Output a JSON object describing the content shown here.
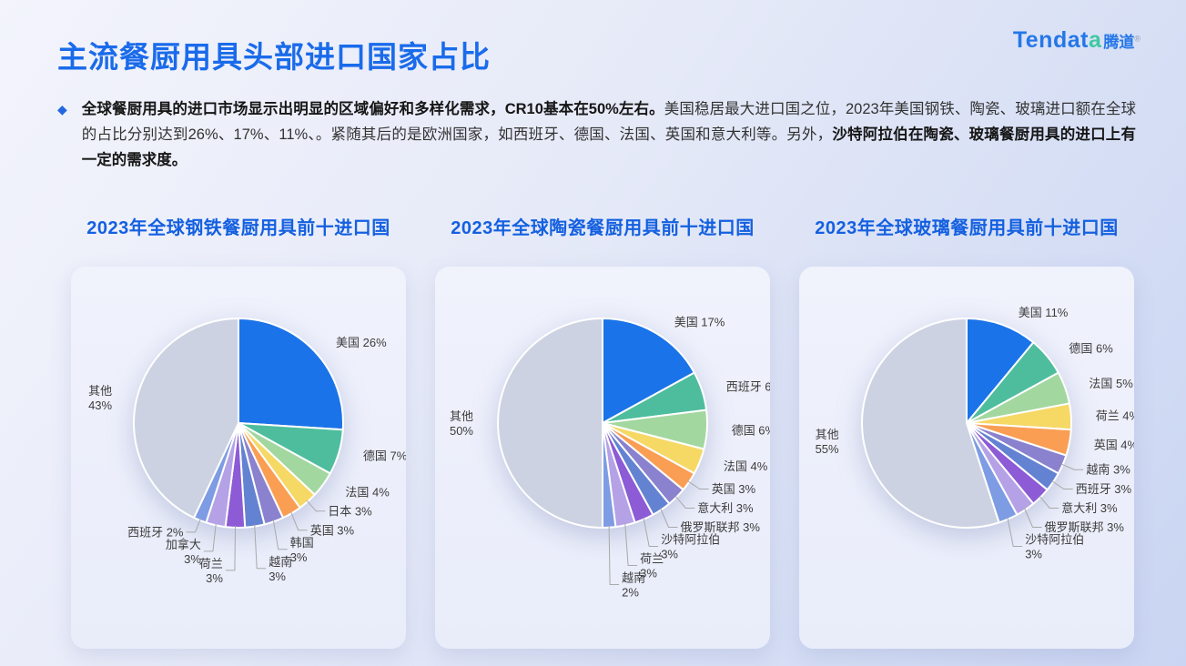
{
  "page": {
    "title": "主流餐厨用具头部进口国家占比"
  },
  "logo": {
    "en_main": "Tendat",
    "en_accent": "a",
    "cn": "腾道",
    "reg": "®"
  },
  "summary": {
    "bullet_icon": "◆",
    "segments": [
      {
        "text": "全球餐厨用具的进口市场显示出明显的区域偏好和多样化需求，CR10基本在50%左右。",
        "bold": true
      },
      {
        "text": "美国稳居最大进口国之位，2023年美国钢铁、陶瓷、玻璃进口额在全球的占比分别达到26%、17%、11%、。紧随其后的是欧洲国家，如西班牙、德国、法国、英国和意大利等。另外，",
        "bold": false
      },
      {
        "text": "沙特阿拉伯在陶瓷、玻璃餐厨用具的进口上有一定的需求度。",
        "bold": true
      }
    ]
  },
  "palette": [
    "#1a73e8",
    "#4ebd9d",
    "#a3d7a0",
    "#f6d865",
    "#f99e53",
    "#8a82ce",
    "#6383d2",
    "#8c5bd5",
    "#b4a1e6",
    "#7e9ce3",
    "#cdd2e2"
  ],
  "colors": {
    "title_blue": "#1a6bea",
    "chart_title_blue": "#1460e0",
    "label_text": "#3c3c3c",
    "leader_line": "#a9a9a9",
    "other_gray": "#cdd2e2"
  },
  "chart_data": [
    {
      "type": "pie",
      "title": "2023年全球钢铁餐厨用具前十进口国",
      "unit": "%",
      "start_angle": "12-oclock",
      "direction": "clockwise",
      "labels": [
        "美国",
        "德国",
        "法国",
        "日本",
        "英国",
        "韩国",
        "越南",
        "荷兰",
        "加拿大",
        "西班牙",
        "其他"
      ],
      "values": [
        26,
        7,
        4,
        3,
        3,
        3,
        3,
        3,
        3,
        2,
        43
      ]
    },
    {
      "type": "pie",
      "title": "2023年全球陶瓷餐厨用具前十进口国",
      "unit": "%",
      "start_angle": "12-oclock",
      "direction": "clockwise",
      "labels": [
        "美国",
        "西班牙",
        "德国",
        "法国",
        "英国",
        "意大利",
        "俄罗斯联邦",
        "沙特阿拉伯",
        "荷兰",
        "越南",
        "其他"
      ],
      "values": [
        17,
        6,
        6,
        4,
        3,
        3,
        3,
        3,
        3,
        2,
        50
      ]
    },
    {
      "type": "pie",
      "title": "2023年全球玻璃餐厨用具前十进口国",
      "unit": "%",
      "start_angle": "12-oclock",
      "direction": "clockwise",
      "labels": [
        "美国",
        "德国",
        "法国",
        "荷兰",
        "英国",
        "越南",
        "西班牙",
        "意大利",
        "俄罗斯联邦",
        "沙特阿拉伯",
        "其他"
      ],
      "values": [
        11,
        6,
        5,
        4,
        4,
        3,
        3,
        3,
        3,
        3,
        55
      ]
    }
  ]
}
